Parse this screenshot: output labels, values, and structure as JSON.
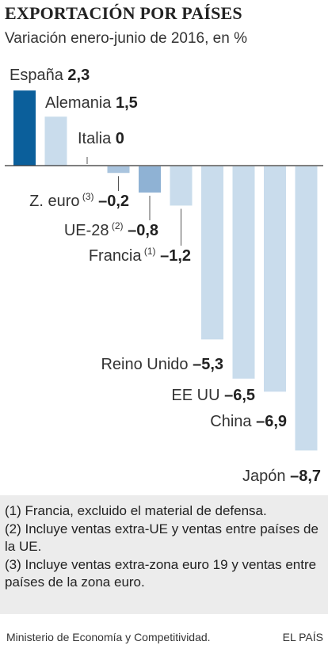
{
  "chart_data": {
    "type": "bar",
    "title": "EXPORTACIÓN POR PAÍSES",
    "subtitle": "Variación enero-junio de 2016, en %",
    "categories": [
      "España",
      "Alemania",
      "Italia",
      "Z. euro",
      "UE-28",
      "Francia",
      "Reino Unido",
      "EE UU",
      "China",
      "Japón"
    ],
    "footnote_marks": [
      "",
      "",
      "",
      "(3)",
      "(2)",
      "(1)",
      "",
      "",
      "",
      ""
    ],
    "values": [
      2.3,
      1.5,
      0,
      -0.2,
      -0.8,
      -1.2,
      -5.3,
      -6.5,
      -6.9,
      -8.7
    ],
    "value_labels": [
      "2,3",
      "1,5",
      "0",
      "–0,2",
      "–0,8",
      "–1,2",
      "–5,3",
      "–6,5",
      "–6,9",
      "–8,7"
    ],
    "colors": [
      "#0b5f9b",
      "#c9dcec",
      "#c9dcec",
      "#a9c4de",
      "#8fb2d4",
      "#c9dcec",
      "#c9dcec",
      "#c9dcec",
      "#c9dcec",
      "#c9dcec"
    ],
    "ylim": [
      -8.7,
      2.3
    ],
    "grid": false,
    "legend": "none"
  },
  "notes": [
    "(1) Francia, excluido el material de defensa.",
    "(2) Incluye ventas extra-UE y ventas entre países de la UE.",
    "(3) Incluye ventas extra-zona euro 19 y ventas entre países de la zona euro."
  ],
  "footer": {
    "source": "Ministerio de Economía y Competitividad.",
    "brand": "EL PAÍS"
  }
}
